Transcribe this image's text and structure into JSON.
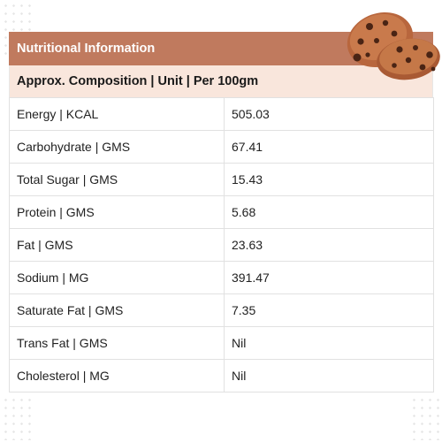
{
  "title": "Nutritional Information",
  "subtitle": "Approx. Composition | Unit | Per 100gm",
  "rows": [
    {
      "label": "Energy | KCAL",
      "value": "505.03"
    },
    {
      "label": "Carbohydrate | GMS",
      "value": "67.41"
    },
    {
      "label": "Total Sugar | GMS",
      "value": "15.43"
    },
    {
      "label": "Protein | GMS",
      "value": "5.68"
    },
    {
      "label": "Fat | GMS",
      "value": "23.63"
    },
    {
      "label": "Sodium | MG",
      "value": "391.47"
    },
    {
      "label": "Saturate Fat | GMS",
      "value": "7.35"
    },
    {
      "label": "Trans Fat | GMS",
      "value": "Nil"
    },
    {
      "label": "Cholesterol | MG",
      "value": "Nil"
    }
  ],
  "colors": {
    "title_bar": "#c07a5e",
    "sub_header": "#f9e6dc",
    "cookie": "#b8663d"
  },
  "icons": {
    "decoration": "cookie-icon"
  }
}
